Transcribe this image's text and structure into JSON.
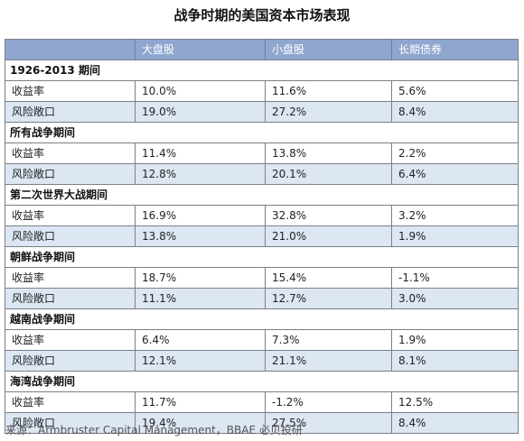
{
  "title": "战争时期的美国资本市场表现",
  "columns": [
    "",
    "大盘股",
    "小盘股",
    "长期债券"
  ],
  "sections": [
    {
      "name": "1926-2013 期间",
      "rows": [
        {
          "label": "收益率",
          "values": [
            "10.0%",
            "11.6%",
            "5.6%"
          ]
        },
        {
          "label": "风险敞口",
          "values": [
            "19.0%",
            "27.2%",
            "8.4%"
          ]
        }
      ]
    },
    {
      "name": "所有战争期间",
      "rows": [
        {
          "label": "收益率",
          "values": [
            "11.4%",
            "13.8%",
            "2.2%"
          ]
        },
        {
          "label": "风险敞口",
          "values": [
            "12.8%",
            "20.1%",
            "6.4%"
          ]
        }
      ]
    },
    {
      "name": "第二次世界大战期间",
      "rows": [
        {
          "label": "收益率",
          "values": [
            "16.9%",
            "32.8%",
            "3.2%"
          ]
        },
        {
          "label": "风险敞口",
          "values": [
            "13.8%",
            "21.0%",
            "1.9%"
          ]
        }
      ]
    },
    {
      "name": "朝鲜战争期间",
      "rows": [
        {
          "label": "收益率",
          "values": [
            "18.7%",
            "15.4%",
            "-1.1%"
          ]
        },
        {
          "label": "风险敞口",
          "values": [
            "11.1%",
            "12.7%",
            "3.0%"
          ]
        }
      ]
    },
    {
      "name": "越南战争期间",
      "rows": [
        {
          "label": "收益率",
          "values": [
            "6.4%",
            "7.3%",
            "1.9%"
          ]
        },
        {
          "label": "风险敞口",
          "values": [
            "12.1%",
            "21.1%",
            "8.1%"
          ]
        }
      ]
    },
    {
      "name": "海湾战争期间",
      "rows": [
        {
          "label": "收益率",
          "values": [
            "11.7%",
            "-1.2%",
            "12.5%"
          ]
        },
        {
          "label": "风险敞口",
          "values": [
            "19.4%",
            "27.5%",
            "8.4%"
          ]
        }
      ]
    }
  ],
  "source": "来源：Armbruster Capital Management，BBAE 必贝投研"
}
